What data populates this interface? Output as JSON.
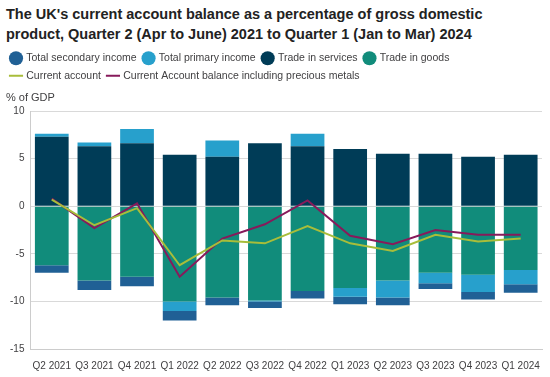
{
  "chart_data": {
    "type": "bar",
    "title": "The UK's current account balance as a percentage of gross domestic product, Quarter 2 (Apr to June) 2021 to Quarter 1 (Jan to Mar) 2024",
    "ylabel": "% of GDP",
    "categories": [
      "Q2 2021",
      "Q3 2021",
      "Q4 2021",
      "Q1 2022",
      "Q2 2022",
      "Q3 2022",
      "Q4 2022",
      "Q1 2023",
      "Q2 2023",
      "Q3 2023",
      "Q4 2023",
      "Q1 2024"
    ],
    "stacked": true,
    "grid": true,
    "legend": "top",
    "ylim": [
      -15,
      10
    ],
    "yticks": [
      -15,
      -10,
      -5,
      0,
      5,
      10
    ],
    "series": [
      {
        "name": "Total secondary income",
        "type": "bar",
        "color": "#206095",
        "values": [
          -0.8,
          -1.0,
          -1.0,
          -1.0,
          -0.8,
          -0.7,
          -0.8,
          -0.8,
          -0.8,
          -0.6,
          -0.8,
          -0.9
        ]
      },
      {
        "name": "Total primary income",
        "type": "bar",
        "color": "#27a0cc",
        "values": [
          0.3,
          0.4,
          1.5,
          -1.0,
          1.7,
          -0.1,
          1.3,
          -0.9,
          -1.8,
          -1.1,
          -1.8,
          -1.5
        ]
      },
      {
        "name": "Trade in services",
        "type": "bar",
        "color": "#003c57",
        "values": [
          7.3,
          6.3,
          6.6,
          5.4,
          5.2,
          6.6,
          6.3,
          6.0,
          5.5,
          5.5,
          5.2,
          5.4
        ]
      },
      {
        "name": "Trade in goods",
        "type": "bar",
        "color": "#118c7b",
        "values": [
          -6.2,
          -7.8,
          -7.4,
          -10.0,
          -9.6,
          -9.9,
          -8.9,
          -8.6,
          -7.8,
          -7.0,
          -7.2,
          -6.7
        ]
      },
      {
        "name": "Current account",
        "type": "line",
        "color": "#a8bd3a",
        "line_style": "solid",
        "marker": "none",
        "values": [
          0.7,
          -2.0,
          -0.2,
          -6.2,
          -3.6,
          -3.9,
          -2.1,
          -3.9,
          -4.7,
          -3.0,
          -3.7,
          -3.4
        ]
      },
      {
        "name": "Current Account balance including precious metals",
        "type": "line",
        "color": "#871a5b",
        "line_style": "solid",
        "marker": "none",
        "values": [
          0.8,
          -2.3,
          0.3,
          -7.4,
          -3.4,
          -1.9,
          0.6,
          -3.1,
          -4.0,
          -2.5,
          -3.0,
          -3.0
        ]
      }
    ]
  }
}
